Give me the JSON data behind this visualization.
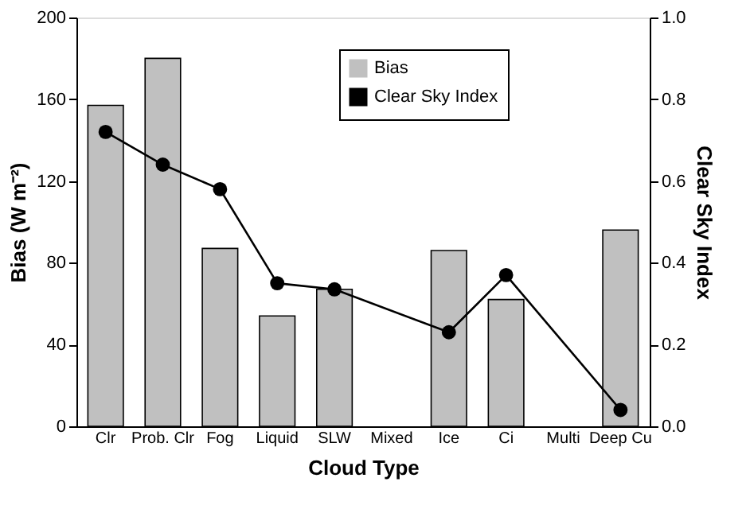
{
  "chart_data": {
    "type": "bar",
    "xlabel": "Cloud Type",
    "ylabel": "Bias (W m⁻²)",
    "y2label": "Clear Sky Index",
    "categories": [
      "Clr",
      "Prob. Clr",
      "Fog",
      "Liquid",
      "SLW",
      "Mixed",
      "Ice",
      "Ci",
      "Multi",
      "Deep Cu"
    ],
    "series": [
      {
        "name": "Bias",
        "color": "#c0c0c0",
        "values": [
          157,
          180,
          87,
          54,
          67,
          null,
          86,
          62,
          null,
          96
        ]
      },
      {
        "name": "Clear Sky Index",
        "type": "line",
        "axis": "y2",
        "color": "#000000",
        "marker": "circle",
        "line_style": "solid",
        "values": [
          0.72,
          0.64,
          0.58,
          0.35,
          0.335,
          null,
          0.23,
          0.37,
          null,
          0.04
        ]
      }
    ],
    "ylim": [
      0,
      200
    ],
    "yticks": [
      0,
      40,
      80,
      120,
      160,
      200
    ],
    "y2lim": [
      0,
      1.0
    ],
    "y2ticks": [
      {
        "value": 0,
        "label": "0.0"
      },
      0.2,
      0.4,
      0.6,
      0.8,
      {
        "value": 1,
        "label": "1.0"
      }
    ],
    "grid": false,
    "legend": "top"
  }
}
